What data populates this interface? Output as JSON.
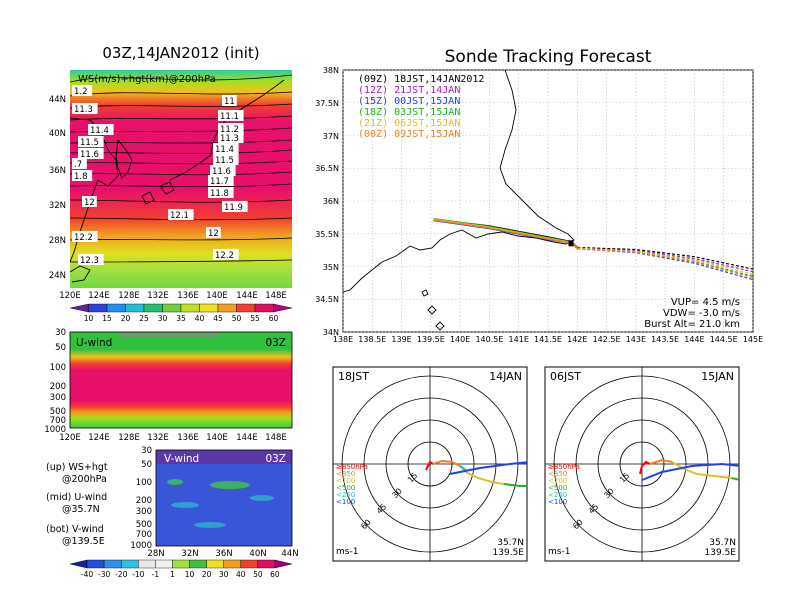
{
  "map_panel": {
    "title": "03Z,14JAN2012 (init)",
    "field_label": "WS(m/s)+hgt(km)@200hPa",
    "lat_ticks": [
      "44N",
      "40N",
      "36N",
      "32N",
      "28N",
      "24N"
    ],
    "lon_ticks": [
      "120E",
      "124E",
      "128E",
      "132E",
      "136E",
      "140E",
      "144E",
      "148E"
    ],
    "contour_labels": [
      "1.2",
      "11.3",
      "11.4",
      "11.5",
      "11.6",
      ".7",
      "1.8",
      "12",
      "12.1",
      "12.2",
      "12.3",
      "11",
      "11.1",
      "11.2",
      "11.3",
      "11.4",
      "11.5",
      "11.6",
      "11.7",
      "11.8",
      "11.9",
      "12",
      "12.2",
      "12.3"
    ],
    "colorbar_ticks": [
      "10",
      "15",
      "20",
      "25",
      "30",
      "35",
      "40",
      "45",
      "50",
      "55",
      "60"
    ]
  },
  "uwind_panel": {
    "label": "U-wind",
    "time": "03Z",
    "p_ticks": [
      "30",
      "50",
      "100",
      "200",
      "300",
      "500",
      "700",
      "1000"
    ],
    "lon_ticks": [
      "120E",
      "124E",
      "128E",
      "132E",
      "136E",
      "140E",
      "144E",
      "148E"
    ]
  },
  "vwind_panel": {
    "label": "V-wind",
    "time": "03Z",
    "p_ticks": [
      "30",
      "50",
      "100",
      "200",
      "300",
      "500",
      "700",
      "1000"
    ],
    "lat_ticks": [
      "28N",
      "32N",
      "36N",
      "40N",
      "44N"
    ],
    "colorbar_ticks": [
      "-40",
      "-30",
      "-20",
      "-10",
      "-1",
      "1",
      "10",
      "20",
      "30",
      "40",
      "50",
      "60"
    ]
  },
  "legend_notes": [
    {
      "a": "(up) WS+hgt",
      "b": "@200hPa"
    },
    {
      "a": "(mid) U-wind",
      "b": "@35.7N"
    },
    {
      "a": "(bot) V-wind",
      "b": "@139.5E"
    }
  ],
  "forecast": {
    "title": "Sonde Tracking Forecast",
    "launches": [
      {
        "label": "(09Z) 18JST,14JAN2012",
        "color": "#000000"
      },
      {
        "label": "(12Z) 21JST,14JAN",
        "color": "#a020c0"
      },
      {
        "label": "(15Z) 00JST,15JAN",
        "color": "#2040ff"
      },
      {
        "label": "(18Z) 03JST,15JAN",
        "color": "#20b020"
      },
      {
        "label": "(21Z) 06JST,15JAN",
        "color": "#e0c020"
      },
      {
        "label": "(00Z) 09JST,15JAN",
        "color": "#f08020"
      }
    ],
    "lat_ticks": [
      "38N",
      "37.5N",
      "37N",
      "36.5N",
      "36N",
      "35.5N",
      "35N",
      "34.5N",
      "34N"
    ],
    "lon_ticks": [
      "138E",
      "138.5E",
      "139E",
      "139.5E",
      "140E",
      "140.5E",
      "141E",
      "141.5E",
      "142E",
      "142.5E",
      "143E",
      "143.5E",
      "144E",
      "144.5E",
      "145E"
    ],
    "vup": "VUP= 4.5 m/s",
    "vdw": "VDW= -3.0 m/s",
    "burst": "Burst Alt= 21.0 km"
  },
  "hodographs": [
    {
      "time": "18JST",
      "date": "14JAN"
    },
    {
      "time": "06JST",
      "date": "15JAN"
    }
  ],
  "hodo_common": {
    "ring_labels": [
      "15",
      "30",
      "45",
      "60"
    ],
    "levels": [
      {
        "label": "≥850hPa",
        "color": "#ff0000"
      },
      {
        "label": "<850",
        "color": "#f08020"
      },
      {
        "label": "<700",
        "color": "#e0c020"
      },
      {
        "label": "<500",
        "color": "#20b020"
      },
      {
        "label": "<250",
        "color": "#20c0c0"
      },
      {
        "label": "<100",
        "color": "#2040ff"
      }
    ],
    "units": "ms-1",
    "lat": "35.7N",
    "lon": "139.5E"
  },
  "chart_data": [
    {
      "type": "heatmap",
      "title": "03Z,14JAN2012 (init)",
      "subtitle": "WS(m/s)+hgt(km)@200hPa",
      "x_ticks": [
        "120E",
        "124E",
        "128E",
        "132E",
        "136E",
        "140E",
        "144E",
        "148E"
      ],
      "y_ticks": [
        "24N",
        "28N",
        "32N",
        "36N",
        "40N",
        "44N"
      ],
      "color_scale": [
        10,
        15,
        20,
        25,
        30,
        35,
        40,
        45,
        50,
        55,
        60
      ]
    },
    {
      "type": "heatmap",
      "title": "U-wind",
      "x_ticks": [
        "120E",
        "124E",
        "128E",
        "132E",
        "136E",
        "140E",
        "144E",
        "148E"
      ],
      "y_ticks": [
        "30",
        "50",
        "100",
        "200",
        "300",
        "500",
        "700",
        "1000"
      ]
    },
    {
      "type": "heatmap",
      "title": "V-wind",
      "x_ticks": [
        "28N",
        "32N",
        "36N",
        "40N",
        "44N"
      ],
      "y_ticks": [
        "30",
        "50",
        "100",
        "200",
        "300",
        "500",
        "700",
        "1000"
      ],
      "color_scale": [
        -40,
        -30,
        -20,
        -10,
        -1,
        1,
        10,
        20,
        30,
        40,
        50,
        60
      ]
    },
    {
      "type": "line",
      "title": "Sonde Tracking Forecast",
      "xlim": [
        138,
        145
      ],
      "ylim": [
        34,
        38
      ],
      "grid": true,
      "series": [
        {
          "name": "(09Z) 18JST,14JAN2012",
          "x": [
            139.55,
            140.5,
            141.5,
            141.9,
            142.0,
            143.0,
            144.0,
            145.0
          ],
          "y": [
            35.72,
            35.62,
            35.45,
            35.38,
            35.29,
            35.26,
            35.15,
            34.96
          ]
        },
        {
          "name": "(12Z) 21JST,14JAN",
          "x": [
            139.55,
            140.5,
            141.5,
            141.9,
            142.0,
            143.0,
            144.0,
            145.0
          ],
          "y": [
            35.71,
            35.6,
            35.43,
            35.37,
            35.28,
            35.24,
            35.12,
            34.92
          ]
        },
        {
          "name": "(15Z) 00JST,15JAN",
          "x": [
            139.55,
            140.5,
            141.5,
            141.9,
            142.0,
            143.0,
            144.0,
            145.0
          ],
          "y": [
            35.7,
            35.58,
            35.41,
            35.36,
            35.27,
            35.21,
            35.05,
            34.8
          ]
        },
        {
          "name": "(18Z) 03JST,15JAN",
          "x": [
            139.55,
            140.5,
            141.5,
            141.9,
            142.0,
            143.0,
            144.0,
            145.0
          ],
          "y": [
            35.73,
            35.61,
            35.44,
            35.37,
            35.28,
            35.22,
            35.08,
            34.85
          ]
        },
        {
          "name": "(21Z) 06JST,15JAN",
          "x": [
            139.55,
            140.5,
            141.5,
            141.9,
            142.0,
            143.0,
            144.0,
            145.0
          ],
          "y": [
            35.72,
            35.6,
            35.43,
            35.37,
            35.28,
            35.23,
            35.1,
            34.88
          ]
        },
        {
          "name": "(00Z) 09JST,15JAN",
          "x": [
            139.55,
            140.5,
            141.5,
            141.9,
            142.0,
            143.0,
            144.0,
            145.0
          ],
          "y": [
            35.71,
            35.59,
            35.42,
            35.36,
            35.27,
            35.22,
            35.07,
            34.83
          ]
        }
      ]
    }
  ]
}
